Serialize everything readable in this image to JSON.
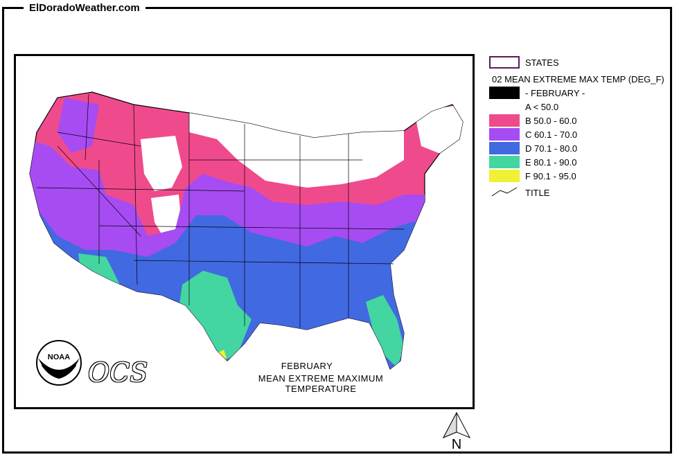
{
  "site": {
    "title": "ElDoradoWeather.com"
  },
  "map": {
    "caption_line1": "FEBRUARY",
    "caption_line2": "MEAN EXTREME MAXIMUM TEMPERATURE",
    "logo_text": "NOAA",
    "ocs_text": "OCS",
    "north_label": "N"
  },
  "legend": {
    "states_label": "STATES",
    "layer_title": "02 MEAN EXTREME MAX TEMP (DEG_F)",
    "month_label": "- FEBRUARY -",
    "classes": [
      {
        "label": "A < 50.0",
        "color": "#000000"
      },
      {
        "label": "B 50.0 - 60.0",
        "color": "#ef4b8c"
      },
      {
        "label": "C 60.1 - 70.0",
        "color": "#a64cf2"
      },
      {
        "label": "D 70.1 - 80.0",
        "color": "#4169e1"
      },
      {
        "label": "E 80.1 - 90.0",
        "color": "#44d6a0"
      },
      {
        "label": "F 90.1 - 95.0",
        "color": "#f0f035"
      }
    ],
    "title_entry_label": "TITLE",
    "states_outline_color": "#5a1a5a"
  }
}
